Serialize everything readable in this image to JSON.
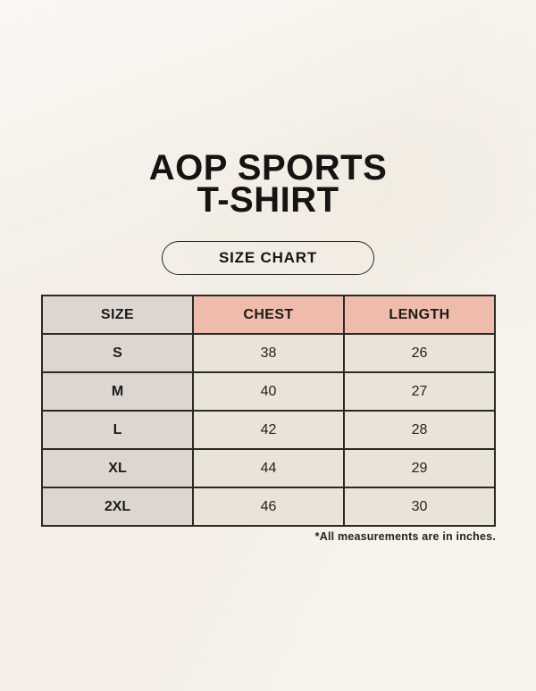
{
  "page": {
    "background_color": "#f8f4ed"
  },
  "header": {
    "title_line1": "AOP SPORTS",
    "title_line2": "T-SHIRT",
    "chart_button_label": "SIZE CHART"
  },
  "colors": {
    "header_accent_pink": "#efbcab",
    "size_column_gray": "#ddd6d0",
    "data_cell_cream": "#eae4d8",
    "table_border": "#2b2926",
    "text": "#161412"
  },
  "chart_data": {
    "type": "table",
    "title": "AOP SPORTS T-SHIRT — SIZE CHART",
    "columns": [
      "SIZE",
      "CHEST",
      "LENGTH"
    ],
    "rows": [
      [
        "S",
        38,
        26
      ],
      [
        "M",
        40,
        27
      ],
      [
        "L",
        42,
        28
      ],
      [
        "XL",
        44,
        29
      ],
      [
        "2XL",
        46,
        30
      ]
    ],
    "units": "inches"
  },
  "footer": {
    "note": "*All measurements are in inches."
  }
}
